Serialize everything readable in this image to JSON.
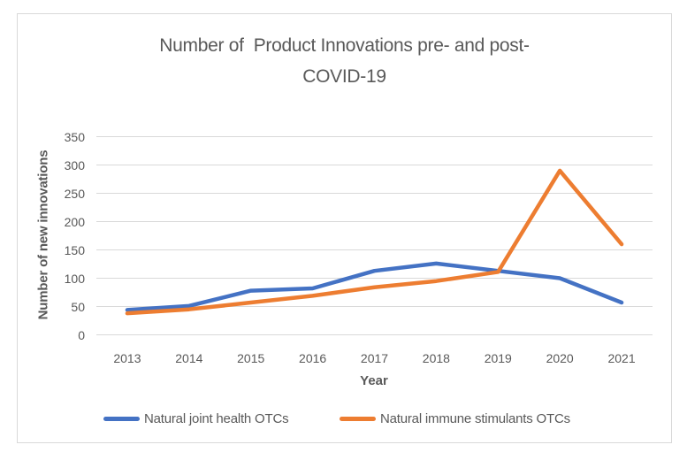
{
  "chart_data": {
    "type": "line",
    "title": "Number of  Product Innovations pre- and post-COVID-19",
    "title_lines": [
      "Number of  Product Innovations pre- and post-",
      "COVID-19"
    ],
    "categories": [
      "2013",
      "2014",
      "2015",
      "2016",
      "2017",
      "2018",
      "2019",
      "2020",
      "2021"
    ],
    "series": [
      {
        "name": "Natural joint health OTCs",
        "color": "#4472C4",
        "values": [
          44,
          51,
          78,
          82,
          113,
          126,
          113,
          100,
          57
        ]
      },
      {
        "name": "Natural immune stimulants OTCs",
        "color": "#ED7D31",
        "values": [
          38,
          45,
          57,
          69,
          84,
          95,
          111,
          290,
          160
        ]
      }
    ],
    "xlabel": "Year",
    "ylabel": "Number of new innovations",
    "ylim": [
      0,
      350
    ],
    "yticks": [
      0,
      50,
      100,
      150,
      200,
      250,
      300,
      350
    ],
    "grid": true,
    "legend_position": "bottom",
    "colors": {
      "grid": "#D9D9D9",
      "frame_border": "#D9D9D9",
      "text": "#595959",
      "background": "#FFFFFF"
    }
  }
}
